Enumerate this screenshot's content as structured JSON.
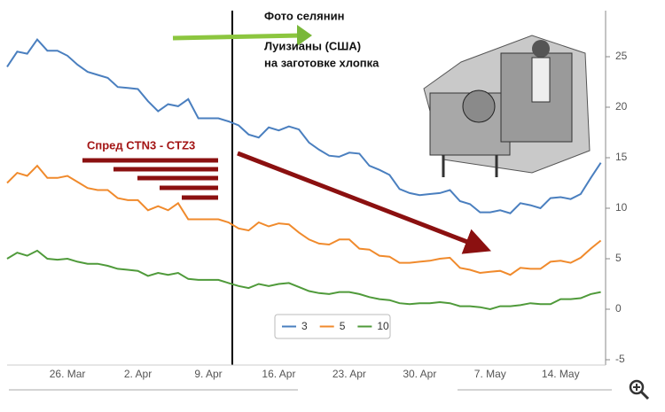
{
  "chart_data": {
    "type": "line",
    "categories": [
      null,
      null,
      null,
      null,
      null,
      null,
      "26. Mar",
      null,
      null,
      null,
      null,
      null,
      null,
      "2. Apr",
      null,
      null,
      null,
      null,
      null,
      null,
      "9. Apr",
      null,
      null,
      null,
      null,
      null,
      null,
      "16. Apr",
      null,
      null,
      null,
      null,
      null,
      null,
      "23. Apr",
      null,
      null,
      null,
      null,
      null,
      null,
      "30. Apr",
      null,
      null,
      null,
      null,
      null,
      null,
      "7. May",
      null,
      null,
      null,
      null,
      null,
      null,
      "14. May",
      null,
      null,
      null,
      null
    ],
    "series": [
      {
        "name": "3",
        "color": "#4a7fbf",
        "values": [
          24.0,
          25.5,
          25.3,
          26.7,
          25.6,
          25.6,
          25.1,
          24.2,
          23.5,
          23.2,
          22.9,
          22.0,
          21.9,
          21.8,
          20.6,
          19.6,
          20.3,
          20.1,
          20.8,
          18.9,
          18.9,
          18.9,
          18.6,
          18.2,
          17.3,
          17.0,
          18.0,
          17.7,
          18.1,
          17.8,
          16.5,
          15.8,
          15.2,
          15.1,
          15.5,
          15.4,
          14.2,
          13.8,
          13.3,
          11.9,
          11.5,
          11.3,
          11.4,
          11.5,
          11.8,
          10.7,
          10.4,
          9.6,
          9.6,
          9.8,
          9.5,
          10.5,
          10.3,
          10.0,
          11.0,
          11.1,
          10.9,
          11.4,
          13.0,
          14.5
        ]
      },
      {
        "name": "5",
        "color": "#f08a2c",
        "values": [
          12.5,
          13.5,
          13.2,
          14.2,
          13,
          13,
          13.2,
          12.6,
          12,
          11.8,
          11.8,
          11,
          10.8,
          10.8,
          9.8,
          10.2,
          9.8,
          10.5,
          8.9,
          8.9,
          8.9,
          8.9,
          8.6,
          8.0,
          7.8,
          8.6,
          8.2,
          8.5,
          8.4,
          7.6,
          6.9,
          6.5,
          6.4,
          6.9,
          6.9,
          6.0,
          5.9,
          5.3,
          5.2,
          4.6,
          4.6,
          4.7,
          4.8,
          5.0,
          5.1,
          4.1,
          3.9,
          3.6,
          3.7,
          3.8,
          3.4,
          4.1,
          4.0,
          4.0,
          4.7,
          4.8,
          4.6,
          5.1,
          6.0,
          6.8
        ]
      },
      {
        "name": "10",
        "color": "#4f9a3a",
        "values": [
          5.0,
          5.6,
          5.3,
          5.8,
          5.0,
          4.9,
          5.0,
          4.7,
          4.5,
          4.5,
          4.3,
          4.0,
          3.9,
          3.8,
          3.3,
          3.6,
          3.4,
          3.6,
          3.0,
          2.9,
          2.9,
          2.9,
          2.6,
          2.3,
          2.1,
          2.5,
          2.3,
          2.5,
          2.6,
          2.2,
          1.8,
          1.6,
          1.5,
          1.7,
          1.7,
          1.5,
          1.2,
          1.0,
          0.9,
          0.6,
          0.5,
          0.6,
          0.6,
          0.7,
          0.6,
          0.3,
          0.3,
          0.2,
          0.0,
          0.3,
          0.3,
          0.4,
          0.6,
          0.5,
          0.5,
          1.0,
          1.0,
          1.1,
          1.5,
          1.7
        ]
      }
    ],
    "ylim": [
      -5.5,
      29.5
    ],
    "yticks": [
      -5,
      0,
      5,
      10,
      15,
      20,
      25
    ],
    "grid": false,
    "legend": "bottom",
    "annotations": {
      "photo_caption": [
        "Фото селянин",
        "Луизианы (США)",
        "на заготовке хлопка"
      ],
      "spread_label": "Спред CTN3 - CTZ3"
    }
  }
}
